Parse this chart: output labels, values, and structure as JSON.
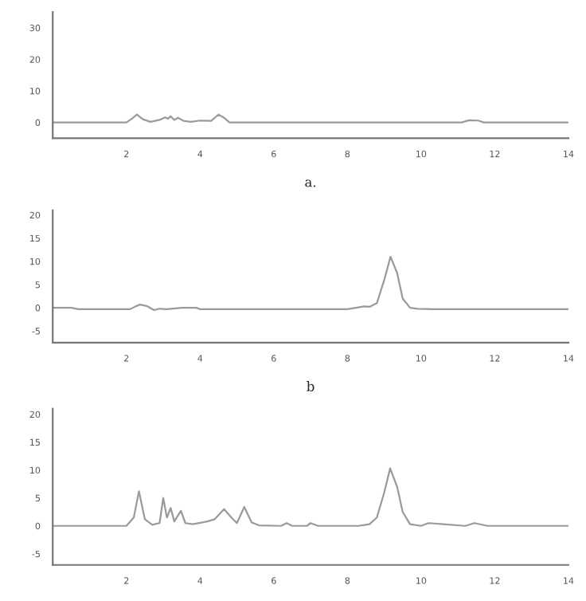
{
  "chart_data": [
    {
      "type": "line",
      "xlabel": "a.",
      "xlim": [
        0,
        14
      ],
      "xticks": [
        2,
        4,
        6,
        8,
        10,
        12,
        14
      ],
      "ylim": [
        -5,
        35
      ],
      "yticks": [
        0,
        10,
        20,
        30
      ],
      "grid": false,
      "series": [
        {
          "color": "#9a9a9a",
          "x": [
            0,
            2.0,
            2.15,
            2.28,
            2.45,
            2.65,
            2.9,
            3.05,
            3.13,
            3.2,
            3.3,
            3.4,
            3.55,
            3.75,
            4.0,
            4.3,
            4.5,
            4.65,
            4.8,
            6,
            8,
            10,
            11.1,
            11.3,
            11.55,
            11.7,
            14
          ],
          "values": [
            0,
            0,
            1.2,
            2.5,
            1.0,
            0.2,
            0.8,
            1.6,
            1.2,
            2.0,
            0.8,
            1.5,
            0.5,
            0.2,
            0.6,
            0.5,
            2.5,
            1.5,
            0,
            0,
            0,
            0,
            0,
            0.7,
            0.6,
            0,
            0
          ]
        }
      ]
    },
    {
      "type": "line",
      "xlabel": "b",
      "xlim": [
        0,
        14
      ],
      "xticks": [
        2,
        4,
        6,
        8,
        10,
        12,
        14
      ],
      "ylim": [
        -7.5,
        21
      ],
      "yticks": [
        -5,
        0,
        5,
        10,
        15,
        20
      ],
      "grid": false,
      "series": [
        {
          "color": "#9a9a9a",
          "x": [
            0,
            0.5,
            0.7,
            2.1,
            2.25,
            2.37,
            2.55,
            2.75,
            2.9,
            3.1,
            3.5,
            3.9,
            4.0,
            6,
            8,
            8.3,
            8.45,
            8.6,
            8.8,
            9.0,
            9.17,
            9.35,
            9.5,
            9.7,
            9.9,
            10.3,
            14
          ],
          "values": [
            0,
            0,
            -0.3,
            -0.3,
            0.3,
            0.7,
            0.4,
            -0.5,
            -0.2,
            -0.3,
            0,
            0,
            -0.3,
            -0.3,
            -0.3,
            0.1,
            0.3,
            0.2,
            1.0,
            6.0,
            11.0,
            7.5,
            2.0,
            0.0,
            -0.2,
            -0.3,
            -0.3
          ]
        }
      ]
    },
    {
      "type": "line",
      "xlim": [
        0,
        14
      ],
      "xticks": [
        2,
        4,
        6,
        8,
        10,
        12,
        14
      ],
      "ylim": [
        -7,
        21
      ],
      "yticks": [
        -5,
        0,
        5,
        10,
        15,
        20
      ],
      "grid": false,
      "series": [
        {
          "color": "#9a9a9a",
          "x": [
            0,
            2.0,
            2.2,
            2.34,
            2.5,
            2.7,
            2.9,
            3.0,
            3.1,
            3.2,
            3.3,
            3.48,
            3.6,
            3.8,
            4.2,
            4.4,
            4.65,
            4.85,
            5.0,
            5.2,
            5.4,
            5.6,
            6.2,
            6.35,
            6.5,
            6.9,
            7.0,
            7.2,
            8.3,
            8.6,
            8.8,
            9.0,
            9.16,
            9.35,
            9.5,
            9.7,
            10.0,
            10.2,
            10.6,
            11.2,
            11.45,
            11.8,
            14
          ],
          "values": [
            0,
            0,
            1.5,
            6.2,
            1.2,
            0.2,
            0.5,
            5.0,
            1.5,
            3.2,
            0.8,
            2.7,
            0.5,
            0.3,
            0.8,
            1.2,
            3.0,
            1.5,
            0.5,
            3.4,
            0.6,
            0.1,
            0,
            0.5,
            0,
            0,
            0.5,
            0,
            0,
            0.3,
            1.5,
            6.0,
            10.3,
            7.0,
            2.5,
            0.3,
            0,
            0.5,
            0.3,
            0,
            0.5,
            0,
            0
          ]
        }
      ]
    }
  ]
}
